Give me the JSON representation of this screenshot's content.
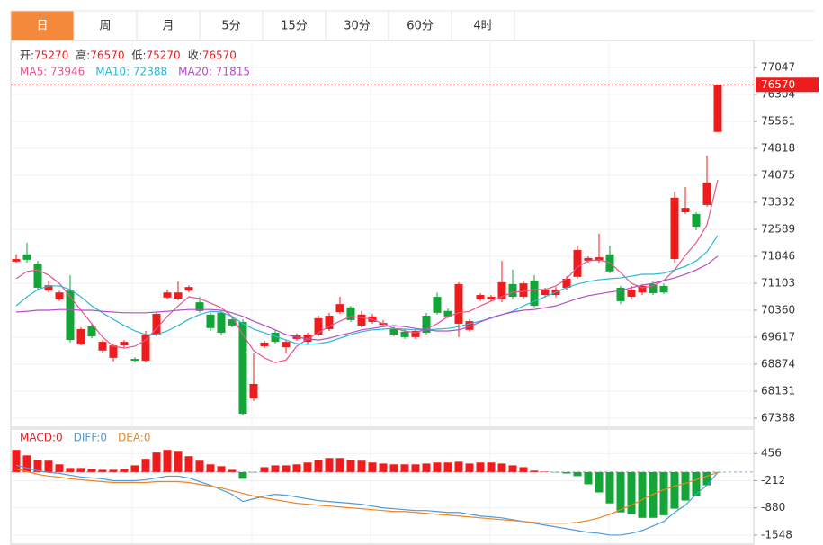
{
  "tabs": [
    "日",
    "周",
    "月",
    "5分",
    "15分",
    "30分",
    "60分",
    "4时"
  ],
  "active_tab": 0,
  "chart_data": [
    {
      "type": "candlestick",
      "info": [
        {
          "label": "开:",
          "value": 75270
        },
        {
          "label": "高:",
          "value": 76570
        },
        {
          "label": "低:",
          "value": 75270
        },
        {
          "label": "收:",
          "value": 76570
        }
      ],
      "open": [
        71700,
        71900,
        71650,
        70900,
        70660,
        70900,
        69420,
        69920,
        69250,
        69050,
        69390,
        69020,
        68970,
        69690,
        70710,
        70680,
        70900,
        70580,
        70240,
        70290,
        70110,
        70040,
        67930,
        69370,
        69740,
        69340,
        69570,
        69490,
        69690,
        69840,
        70310,
        70440,
        69940,
        70040,
        69960,
        69840,
        69770,
        69620,
        70210,
        70730,
        70340,
        69990,
        69820,
        70660,
        70660,
        70660,
        71080,
        70730,
        71180,
        70780,
        70780,
        70980,
        71280,
        71720,
        71720,
        71900,
        70980,
        70730,
        70850,
        71080,
        71030,
        71770,
        73060,
        73010,
        73260,
        75270
      ],
      "high": [
        71900,
        72220,
        71720,
        71180,
        70900,
        71330,
        69890,
        69990,
        69540,
        69440,
        69540,
        69070,
        69790,
        70310,
        70930,
        71150,
        71050,
        70730,
        70310,
        70340,
        70190,
        70110,
        69170,
        69520,
        69820,
        69540,
        69720,
        69740,
        70210,
        70290,
        70730,
        70480,
        70340,
        70260,
        70090,
        69910,
        69840,
        69860,
        70290,
        70850,
        70410,
        71130,
        70110,
        70830,
        70780,
        71720,
        71480,
        71180,
        71330,
        70980,
        71000,
        71300,
        72120,
        71850,
        72470,
        72140,
        71030,
        71030,
        71080,
        71150,
        71100,
        73630,
        73750,
        73060,
        74620,
        76570
      ],
      "low": [
        71670,
        71670,
        70930,
        70850,
        70610,
        69470,
        69390,
        69590,
        69200,
        68950,
        69340,
        68920,
        68920,
        69640,
        70660,
        70630,
        70850,
        70290,
        69790,
        69670,
        69890,
        67460,
        67860,
        69320,
        69440,
        69170,
        69520,
        69440,
        69640,
        69790,
        70260,
        70040,
        69890,
        69990,
        69910,
        69640,
        69570,
        69570,
        69690,
        70240,
        70140,
        69620,
        69770,
        70610,
        70610,
        70580,
        70660,
        70680,
        70440,
        70730,
        70710,
        70930,
        71230,
        71670,
        71670,
        71380,
        70530,
        70660,
        70780,
        70780,
        70810,
        71670,
        73010,
        72560,
        73210,
        75270
      ],
      "close": [
        71770,
        71750,
        70980,
        71050,
        70850,
        69540,
        69840,
        69640,
        69490,
        69390,
        69490,
        68970,
        69690,
        70260,
        70850,
        70850,
        71000,
        70340,
        69870,
        69740,
        69940,
        67510,
        68330,
        69470,
        69490,
        69490,
        69670,
        69690,
        70140,
        70210,
        70530,
        70090,
        70240,
        70190,
        70010,
        69690,
        69620,
        69790,
        69740,
        70290,
        70190,
        71080,
        70060,
        70780,
        70730,
        71130,
        70730,
        71100,
        70480,
        70930,
        70930,
        71230,
        72020,
        71800,
        71820,
        71430,
        70610,
        70930,
        71030,
        70830,
        70850,
        73460,
        73180,
        72660,
        73880,
        76570
      ],
      "up_color": "#ee1c1c",
      "down_color": "#13a538",
      "series": [
        {
          "label": "MA5: 73946",
          "color": "#e4568e",
          "values": [
            71230,
            71430,
            71470,
            71330,
            71100,
            70730,
            70360,
            69990,
            69620,
            69370,
            69320,
            69370,
            69540,
            69860,
            70190,
            70480,
            70730,
            70680,
            70560,
            70430,
            70190,
            69690,
            69250,
            69050,
            68920,
            68990,
            69370,
            69570,
            69740,
            69920,
            70060,
            70190,
            70160,
            70110,
            69990,
            69860,
            69790,
            69740,
            69840,
            69990,
            70190,
            70290,
            70330,
            70480,
            70610,
            70730,
            70860,
            70880,
            70930,
            70930,
            71030,
            71230,
            71550,
            71720,
            71750,
            71670,
            71400,
            71100,
            70980,
            71030,
            71180,
            71470,
            71870,
            72220,
            72710,
            73950
          ]
        },
        {
          "label": "MA10: 72388",
          "color": "#2ab8d4",
          "values": [
            70480,
            70730,
            70930,
            71030,
            71030,
            70930,
            70730,
            70480,
            70290,
            70110,
            69940,
            69790,
            69690,
            69690,
            69790,
            69940,
            70110,
            70240,
            70330,
            70310,
            70190,
            69990,
            69840,
            69740,
            69640,
            69540,
            69440,
            69420,
            69440,
            69490,
            69590,
            69690,
            69770,
            69820,
            69840,
            69860,
            69840,
            69820,
            69820,
            69840,
            69860,
            69910,
            69990,
            70060,
            70140,
            70240,
            70330,
            70480,
            70610,
            70730,
            70860,
            70980,
            71080,
            71150,
            71200,
            71230,
            71250,
            71300,
            71350,
            71350,
            71380,
            71470,
            71570,
            71720,
            71970,
            72420
          ]
        },
        {
          "label": "MA20: 71815",
          "color": "#b24fc6",
          "values": [
            70310,
            70330,
            70360,
            70360,
            70380,
            70380,
            70360,
            70360,
            70330,
            70310,
            70290,
            70290,
            70290,
            70310,
            70330,
            70360,
            70380,
            70380,
            70380,
            70360,
            70290,
            70190,
            70060,
            69940,
            69820,
            69690,
            69620,
            69570,
            69540,
            69590,
            69670,
            69740,
            69820,
            69860,
            69910,
            69940,
            69910,
            69860,
            69820,
            69790,
            69790,
            69820,
            69910,
            70040,
            70160,
            70240,
            70310,
            70360,
            70380,
            70430,
            70480,
            70580,
            70680,
            70760,
            70810,
            70860,
            70900,
            70980,
            71050,
            71100,
            71180,
            71250,
            71350,
            71470,
            71620,
            71850
          ]
        }
      ],
      "last_price": 76570,
      "ylim": [
        67140,
        77790
      ],
      "yticks": [
        77047,
        76304,
        75561,
        74818,
        74075,
        73332,
        72589,
        71846,
        71103,
        70360,
        69617,
        68874,
        68131,
        67388
      ],
      "grid": true
    },
    {
      "type": "macd",
      "label": "MACD:0",
      "values": [
        545,
        410,
        300,
        280,
        190,
        100,
        100,
        80,
        55,
        55,
        80,
        165,
        325,
        480,
        545,
        500,
        390,
        280,
        190,
        145,
        55,
        -165,
        -10,
        120,
        165,
        165,
        190,
        235,
        300,
        345,
        345,
        300,
        280,
        235,
        210,
        190,
        190,
        190,
        210,
        235,
        235,
        255,
        210,
        235,
        235,
        210,
        165,
        120,
        35,
        10,
        -10,
        -35,
        -100,
        -300,
        -500,
        -770,
        -990,
        -1035,
        -1125,
        -1125,
        -1060,
        -900,
        -700,
        -590,
        -325,
        -10
      ],
      "up_color": "#ee1c1c",
      "down_color": "#13a538",
      "series": [
        {
          "label": "DIFF:0",
          "color": "#4a9be0",
          "values": [
            167,
            100,
            33,
            -11,
            -33,
            -78,
            -122,
            -145,
            -167,
            -212,
            -212,
            -212,
            -189,
            -145,
            -100,
            -100,
            -145,
            -234,
            -323,
            -434,
            -546,
            -724,
            -657,
            -590,
            -546,
            -568,
            -612,
            -657,
            -701,
            -724,
            -746,
            -768,
            -791,
            -835,
            -880,
            -902,
            -924,
            -946,
            -946,
            -969,
            -991,
            -991,
            -1036,
            -1080,
            -1102,
            -1125,
            -1169,
            -1214,
            -1258,
            -1303,
            -1347,
            -1392,
            -1436,
            -1481,
            -1503,
            -1548,
            -1548,
            -1503,
            -1436,
            -1325,
            -1214,
            -991,
            -813,
            -546,
            -323,
            -11
          ]
        },
        {
          "label": "DEA:0",
          "color": "#f0841f",
          "values": [
            78,
            11,
            -56,
            -100,
            -122,
            -167,
            -189,
            -212,
            -234,
            -256,
            -256,
            -256,
            -256,
            -234,
            -234,
            -234,
            -256,
            -301,
            -345,
            -390,
            -457,
            -523,
            -590,
            -635,
            -679,
            -724,
            -768,
            -791,
            -813,
            -835,
            -857,
            -880,
            -902,
            -924,
            -946,
            -969,
            -969,
            -991,
            -1013,
            -1036,
            -1058,
            -1080,
            -1102,
            -1125,
            -1147,
            -1169,
            -1191,
            -1214,
            -1236,
            -1258,
            -1258,
            -1258,
            -1236,
            -1191,
            -1125,
            -1036,
            -924,
            -813,
            -679,
            -546,
            -434,
            -345,
            -278,
            -189,
            -100,
            -11
          ]
        }
      ],
      "ylim": [
        -1770,
        1058
      ],
      "yticks": [
        456,
        -212,
        -880,
        -1548
      ],
      "grid": true
    }
  ]
}
